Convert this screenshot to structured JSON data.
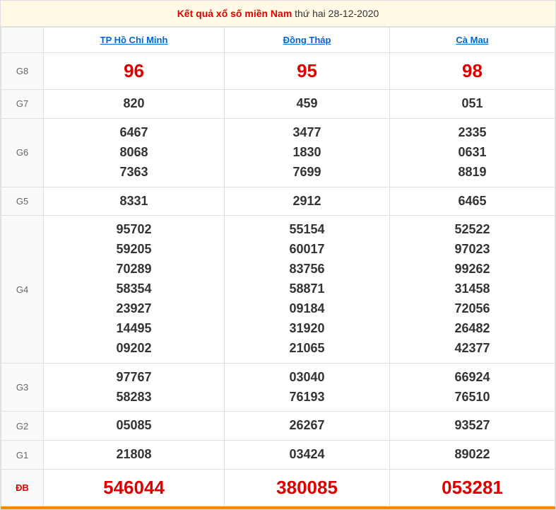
{
  "title": {
    "prefix": "Kết quả xổ số miền Nam",
    "suffix": "thứ hai 28-12-2020"
  },
  "provinces": [
    {
      "name": "TP Hồ Chí Minh"
    },
    {
      "name": "Đồng Tháp"
    },
    {
      "name": "Cà Mau"
    }
  ],
  "prizes": [
    {
      "label": "G8",
      "type": "g8",
      "values": [
        [
          "96"
        ],
        [
          "95"
        ],
        [
          "98"
        ]
      ]
    },
    {
      "label": "G7",
      "type": "normal",
      "values": [
        [
          "820"
        ],
        [
          "459"
        ],
        [
          "051"
        ]
      ]
    },
    {
      "label": "G6",
      "type": "normal",
      "values": [
        [
          "6467",
          "8068",
          "7363"
        ],
        [
          "3477",
          "1830",
          "7699"
        ],
        [
          "2335",
          "0631",
          "8819"
        ]
      ]
    },
    {
      "label": "G5",
      "type": "normal",
      "values": [
        [
          "8331"
        ],
        [
          "2912"
        ],
        [
          "6465"
        ]
      ]
    },
    {
      "label": "G4",
      "type": "normal",
      "values": [
        [
          "95702",
          "59205",
          "70289",
          "58354",
          "23927",
          "14495",
          "09202"
        ],
        [
          "55154",
          "60017",
          "83756",
          "58871",
          "09184",
          "31920",
          "21065"
        ],
        [
          "52522",
          "97023",
          "99262",
          "31458",
          "72056",
          "26482",
          "42377"
        ]
      ]
    },
    {
      "label": "G3",
      "type": "normal",
      "values": [
        [
          "97767",
          "58283"
        ],
        [
          "03040",
          "76193"
        ],
        [
          "66924",
          "76510"
        ]
      ]
    },
    {
      "label": "G2",
      "type": "normal",
      "values": [
        [
          "05085"
        ],
        [
          "26267"
        ],
        [
          "93527"
        ]
      ]
    },
    {
      "label": "G1",
      "type": "normal",
      "values": [
        [
          "21808"
        ],
        [
          "03424"
        ],
        [
          "89022"
        ]
      ]
    },
    {
      "label": "ĐB",
      "type": "jackpot",
      "values": [
        [
          "546044"
        ],
        [
          "380085"
        ],
        [
          "053281"
        ]
      ]
    }
  ],
  "colors": {
    "red": "#dd0000",
    "link": "#0066cc",
    "border": "#e0e0e0",
    "label_bg": "#fafafa",
    "title_bg": "#fff9e6",
    "bottom_bar": "#ff8800",
    "text": "#333333",
    "label_text": "#666666"
  }
}
